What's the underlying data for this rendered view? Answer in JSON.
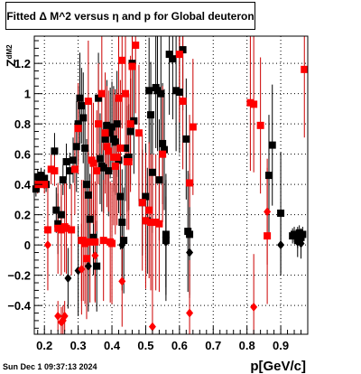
{
  "title": "Fitted Δ M^2 versus η and p for Global deuteron",
  "timestamp": "Sun Dec  1 09:37:13 2024",
  "chart_data": {
    "type": "scatter",
    "xlabel": "p[GeV/c]",
    "ylabel": "Z",
    "ylabel_subscript": "dM2",
    "xlim": [
      0.17,
      0.98
    ],
    "ylim": [
      -0.59,
      1.38
    ],
    "grid": true,
    "x_ticks": [
      0.2,
      0.3,
      0.4,
      0.5,
      0.6,
      0.7,
      0.8,
      0.9
    ],
    "x_tick_labels": [
      "0.2",
      "0.3",
      "0.4",
      "0.5",
      "0.6",
      "0.7",
      "0.8",
      "0.9"
    ],
    "y_ticks": [
      -0.4,
      -0.2,
      0,
      0.2,
      0.4,
      0.6,
      0.8,
      1,
      1.2
    ],
    "y_tick_labels": [
      "−0.4",
      "−0.2",
      "0",
      "0.2",
      "0.4",
      "0.6",
      "0.8",
      "1",
      "1.2"
    ],
    "colors": {
      "black": "#000000",
      "red": "#ff0000",
      "dark_red": "#7a0000",
      "error_red": "#cc0000"
    },
    "series": [
      {
        "color": "#000000",
        "marker": "square",
        "points": [
          {
            "x": 0.175,
            "y": 0.37,
            "e": 0.05
          },
          {
            "x": 0.18,
            "y": 0.45,
            "e": 0.05
          },
          {
            "x": 0.185,
            "y": 0.41,
            "e": 0.05
          },
          {
            "x": 0.19,
            "y": 0.46,
            "e": 0.05
          },
          {
            "x": 0.2,
            "y": 0.44,
            "e": 0.06
          },
          {
            "x": 0.205,
            "y": 0.4,
            "e": 0.05
          },
          {
            "x": 0.23,
            "y": 0.62,
            "e": 0.12
          },
          {
            "x": 0.235,
            "y": 0.23,
            "e": 0.15
          },
          {
            "x": 0.24,
            "y": 0.14,
            "e": 0.2
          },
          {
            "x": 0.25,
            "y": 0.2,
            "e": 0.12
          },
          {
            "x": 0.255,
            "y": 0.43,
            "e": 0.1
          },
          {
            "x": 0.265,
            "y": 0.55,
            "e": 0.12
          },
          {
            "x": 0.275,
            "y": 0.49,
            "e": 0.12
          },
          {
            "x": 0.285,
            "y": 0.56,
            "e": 0.15
          },
          {
            "x": 0.295,
            "y": 0.65,
            "e": 0.3
          },
          {
            "x": 0.3,
            "y": 0.8,
            "e": 0.25
          },
          {
            "x": 0.305,
            "y": 0.97,
            "e": 0.3
          },
          {
            "x": 0.31,
            "y": 0.92,
            "e": 0.25
          },
          {
            "x": 0.315,
            "y": 0.84,
            "e": 0.3
          },
          {
            "x": 0.32,
            "y": 0.64,
            "e": 0.3
          },
          {
            "x": 0.325,
            "y": 0.4,
            "e": 0.3
          },
          {
            "x": 0.33,
            "y": 0.33,
            "e": 0.3
          },
          {
            "x": 0.335,
            "y": 0.17,
            "e": 0.3
          },
          {
            "x": 0.345,
            "y": 0.05,
            "e": 0.25
          },
          {
            "x": 0.355,
            "y": -0.14,
            "e": 0.3
          },
          {
            "x": 0.36,
            "y": 0.97,
            "e": 0.3
          },
          {
            "x": 0.365,
            "y": 0.57,
            "e": 0.3
          },
          {
            "x": 0.37,
            "y": 0.52,
            "e": 0.3
          },
          {
            "x": 0.375,
            "y": 0.51,
            "e": 0.3
          },
          {
            "x": 0.38,
            "y": 0.7,
            "e": 0.3
          },
          {
            "x": 0.385,
            "y": 0.79,
            "e": 0.3
          },
          {
            "x": 0.39,
            "y": 0.49,
            "e": 0.3
          },
          {
            "x": 0.395,
            "y": 0.74,
            "e": 0.3
          },
          {
            "x": 0.4,
            "y": 0.78,
            "e": 0.3
          },
          {
            "x": 0.405,
            "y": 0.7,
            "e": 0.35
          },
          {
            "x": 0.41,
            "y": 0.68,
            "e": 0.35
          },
          {
            "x": 0.415,
            "y": 0.8,
            "e": 0.35
          },
          {
            "x": 0.42,
            "y": 0.56,
            "e": 0.35
          },
          {
            "x": 0.425,
            "y": 0.32,
            "e": 0.35
          },
          {
            "x": 0.43,
            "y": 0.15,
            "e": 0.35
          },
          {
            "x": 0.435,
            "y": 0.03,
            "e": 0.35
          },
          {
            "x": 0.44,
            "y": 0.64,
            "e": 0.35
          },
          {
            "x": 0.445,
            "y": 0.57,
            "e": 0.35
          },
          {
            "x": 0.45,
            "y": 0.58,
            "e": 0.35
          },
          {
            "x": 0.455,
            "y": 0.75,
            "e": 0.35
          },
          {
            "x": 0.46,
            "y": 1.2,
            "e": 0.35
          },
          {
            "x": 0.465,
            "y": 0.82,
            "e": 0.35
          },
          {
            "x": 0.49,
            "y": 0.28,
            "e": 0.35
          },
          {
            "x": 0.5,
            "y": 0.32,
            "e": 0.35
          },
          {
            "x": 0.505,
            "y": 0.16,
            "e": 0.35
          },
          {
            "x": 0.51,
            "y": 1.02,
            "e": 0.35
          },
          {
            "x": 0.515,
            "y": 0.86,
            "e": 0.35
          },
          {
            "x": 0.52,
            "y": 0.48,
            "e": 0.4
          },
          {
            "x": 0.53,
            "y": 1.04,
            "e": 0.4
          },
          {
            "x": 0.535,
            "y": 1.02,
            "e": 0.4
          },
          {
            "x": 0.54,
            "y": 0.43,
            "e": 0.4
          },
          {
            "x": 0.545,
            "y": 1.0,
            "e": 0.4
          },
          {
            "x": 0.55,
            "y": 0.67,
            "e": 0.4
          },
          {
            "x": 0.555,
            "y": 0.63,
            "e": 0.4
          },
          {
            "x": 0.56,
            "y": 0.07,
            "e": 0.4
          },
          {
            "x": 0.56,
            "y": 0.03,
            "e": 0.4
          },
          {
            "x": 0.57,
            "y": 1.26,
            "e": 0.4
          },
          {
            "x": 0.58,
            "y": 1.23,
            "e": 0.4
          },
          {
            "x": 0.59,
            "y": 1.02,
            "e": 0.4
          },
          {
            "x": 0.6,
            "y": 1.01,
            "e": 0.4
          },
          {
            "x": 0.61,
            "y": 1.29,
            "e": 0.4
          },
          {
            "x": 0.62,
            "y": 0.7,
            "e": 0.4
          },
          {
            "x": 0.625,
            "y": 0.09,
            "e": 0.4
          },
          {
            "x": 0.63,
            "y": 0.07,
            "e": 0.4
          },
          {
            "x": 0.865,
            "y": 0.46,
            "e": 0.4
          },
          {
            "x": 0.875,
            "y": 0.66,
            "e": 0.4
          },
          {
            "x": 0.9,
            "y": 0.21,
            "e": 0.4
          },
          {
            "x": 0.935,
            "y": 0.06,
            "e": 0.05
          },
          {
            "x": 0.94,
            "y": 0.07,
            "e": 0.05
          },
          {
            "x": 0.95,
            "y": 0.03,
            "e": 0.05
          },
          {
            "x": 0.955,
            "y": 0.08,
            "e": 0.05
          },
          {
            "x": 0.96,
            "y": 0.05,
            "e": 0.05
          },
          {
            "x": 0.965,
            "y": 0.07,
            "e": 0.05
          }
        ]
      },
      {
        "color": "#ff0000",
        "marker": "square",
        "points": [
          {
            "x": 0.18,
            "y": 0.4,
            "e": 0.06
          },
          {
            "x": 0.2,
            "y": 0.4,
            "e": 0.06
          },
          {
            "x": 0.21,
            "y": 0.1,
            "e": 0.3
          },
          {
            "x": 0.22,
            "y": 0.5,
            "e": 0.1
          },
          {
            "x": 0.23,
            "y": 0.49,
            "e": 0.1
          },
          {
            "x": 0.24,
            "y": 0.11,
            "e": 0.3
          },
          {
            "x": 0.25,
            "y": 0.1,
            "e": 0.3
          },
          {
            "x": 0.26,
            "y": 0.12,
            "e": 0.3
          },
          {
            "x": 0.265,
            "y": 0.11,
            "e": 0.3
          },
          {
            "x": 0.28,
            "y": 0.1,
            "e": 0.3
          },
          {
            "x": 0.29,
            "y": 0.5,
            "e": 0.3
          },
          {
            "x": 0.3,
            "y": 0.77,
            "e": 0.3
          },
          {
            "x": 0.31,
            "y": 0.03,
            "e": 0.4
          },
          {
            "x": 0.315,
            "y": 0.03,
            "e": 0.4
          },
          {
            "x": 0.32,
            "y": 0.01,
            "e": 0.4
          },
          {
            "x": 0.325,
            "y": -0.09,
            "e": 0.4
          },
          {
            "x": 0.33,
            "y": 0.95,
            "e": 0.4
          },
          {
            "x": 0.335,
            "y": 0.02,
            "e": 0.4
          },
          {
            "x": 0.34,
            "y": 0.56,
            "e": 0.4
          },
          {
            "x": 0.345,
            "y": 0.54,
            "e": 0.4
          },
          {
            "x": 0.35,
            "y": 0.02,
            "e": 0.4
          },
          {
            "x": 0.355,
            "y": 0.49,
            "e": 0.4
          },
          {
            "x": 0.36,
            "y": 0.8,
            "e": 0.4
          },
          {
            "x": 0.37,
            "y": 1.0,
            "e": 0.4
          },
          {
            "x": 0.375,
            "y": 0.03,
            "e": 0.4
          },
          {
            "x": 0.38,
            "y": 0.74,
            "e": 0.4
          },
          {
            "x": 0.385,
            "y": 0.65,
            "e": 0.4
          },
          {
            "x": 0.39,
            "y": 0.62,
            "e": 0.4
          },
          {
            "x": 0.395,
            "y": 0.02,
            "e": 0.4
          },
          {
            "x": 0.4,
            "y": 0.01,
            "e": 0.4
          },
          {
            "x": 0.405,
            "y": 0.58,
            "e": 0.45
          },
          {
            "x": 0.41,
            "y": 0.52,
            "e": 0.45
          },
          {
            "x": 0.415,
            "y": 0.58,
            "e": 0.45
          },
          {
            "x": 0.42,
            "y": 0.97,
            "e": 0.45
          },
          {
            "x": 0.425,
            "y": 0.64,
            "e": 0.45
          },
          {
            "x": 0.43,
            "y": 1.22,
            "e": 0.45
          },
          {
            "x": 0.44,
            "y": 1.0,
            "e": 0.45
          },
          {
            "x": 0.445,
            "y": 0.55,
            "e": 0.45
          },
          {
            "x": 0.45,
            "y": 0.55,
            "e": 0.45
          },
          {
            "x": 0.455,
            "y": 0.8,
            "e": 0.45
          },
          {
            "x": 0.46,
            "y": 1.18,
            "e": 0.45
          },
          {
            "x": 0.47,
            "y": 1.32,
            "e": 0.45
          },
          {
            "x": 0.48,
            "y": 0.74,
            "e": 0.45
          },
          {
            "x": 0.49,
            "y": 0.28,
            "e": 0.45
          },
          {
            "x": 0.5,
            "y": 0.16,
            "e": 0.45
          },
          {
            "x": 0.51,
            "y": 0.23,
            "e": 0.45
          },
          {
            "x": 0.515,
            "y": 0.15,
            "e": 0.45
          },
          {
            "x": 0.52,
            "y": 0.15,
            "e": 0.45
          },
          {
            "x": 0.53,
            "y": 0.15,
            "e": 0.45
          },
          {
            "x": 0.54,
            "y": 0.14,
            "e": 0.45
          },
          {
            "x": 0.55,
            "y": 0.6,
            "e": 0.45
          },
          {
            "x": 0.6,
            "y": 1.26,
            "e": 0.45
          },
          {
            "x": 0.61,
            "y": 0.95,
            "e": 0.45
          },
          {
            "x": 0.63,
            "y": 0.41,
            "e": 0.45
          },
          {
            "x": 0.64,
            "y": 0.78,
            "e": 0.45
          },
          {
            "x": 0.81,
            "y": 0.94,
            "e": 0.45
          },
          {
            "x": 0.82,
            "y": 0.93,
            "e": 0.45
          },
          {
            "x": 0.84,
            "y": 0.79,
            "e": 0.45
          },
          {
            "x": 0.86,
            "y": 0.06,
            "e": 0.45
          },
          {
            "x": 0.97,
            "y": 1.16,
            "e": 0.45
          }
        ]
      },
      {
        "color": "#000000",
        "marker": "diamond",
        "points": [
          {
            "x": 0.27,
            "y": -0.22,
            "e": 0.2
          },
          {
            "x": 0.3,
            "y": -0.17,
            "e": 0.3
          },
          {
            "x": 0.33,
            "y": -0.14,
            "e": 0.3
          },
          {
            "x": 0.43,
            "y": 0.0,
            "e": 0.3
          },
          {
            "x": 0.56,
            "y": 0.02,
            "e": 0.3
          },
          {
            "x": 0.63,
            "y": -0.05,
            "e": 0.3
          },
          {
            "x": 0.9,
            "y": 0.0,
            "e": 0.2
          },
          {
            "x": 0.95,
            "y": 0.02,
            "e": 0.1
          },
          {
            "x": 0.96,
            "y": 0.01,
            "e": 0.1
          }
        ]
      },
      {
        "color": "#ff0000",
        "marker": "diamond",
        "points": [
          {
            "x": 0.21,
            "y": 0.0,
            "e": 0.3
          },
          {
            "x": 0.24,
            "y": -0.47,
            "e": 0.1
          },
          {
            "x": 0.25,
            "y": -0.51,
            "e": 0.1
          },
          {
            "x": 0.255,
            "y": -0.5,
            "e": 0.1
          },
          {
            "x": 0.26,
            "y": -0.47,
            "e": 0.1
          },
          {
            "x": 0.31,
            "y": -0.16,
            "e": 0.3
          },
          {
            "x": 0.35,
            "y": -0.07,
            "e": 0.3
          },
          {
            "x": 0.43,
            "y": -0.24,
            "e": 0.3
          },
          {
            "x": 0.52,
            "y": -0.54,
            "e": 0.35
          },
          {
            "x": 0.63,
            "y": -0.45,
            "e": 0.35
          },
          {
            "x": 0.82,
            "y": -0.41,
            "e": 0.35
          },
          {
            "x": 0.86,
            "y": 0.22,
            "e": 0.35
          }
        ]
      }
    ]
  }
}
